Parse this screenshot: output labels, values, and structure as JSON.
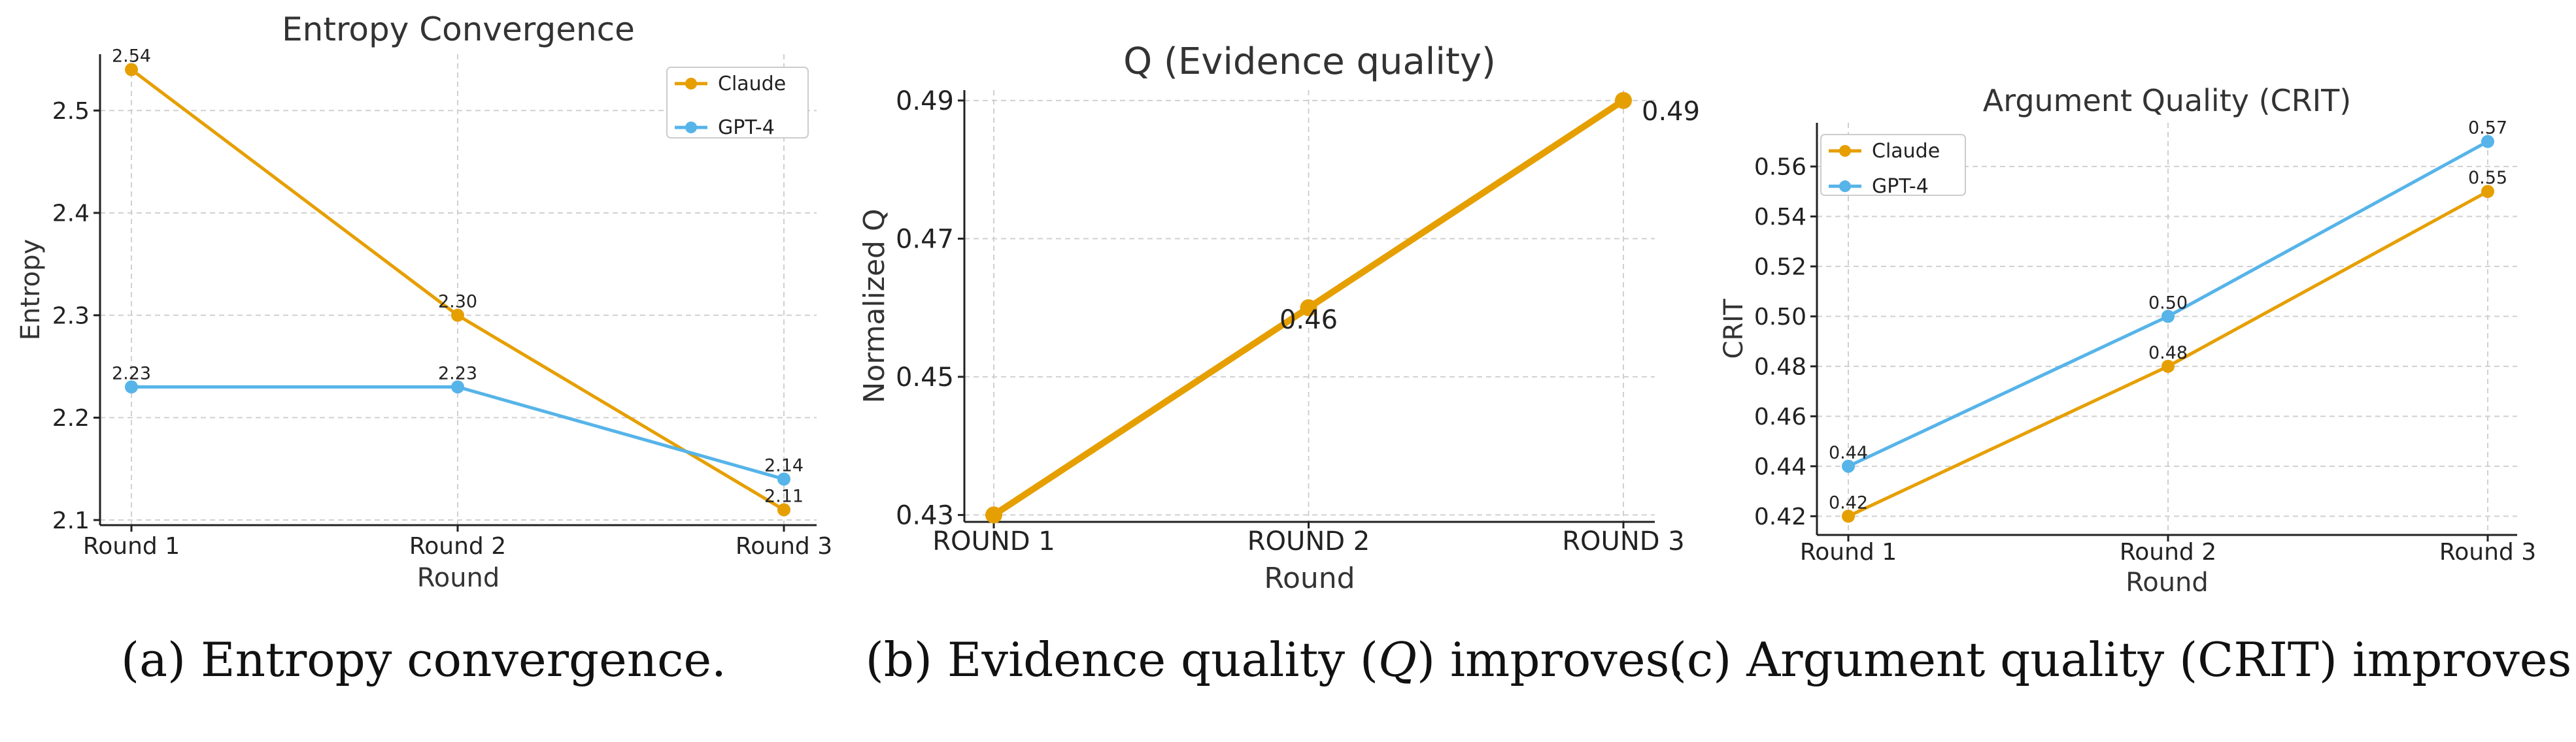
{
  "chart_data": [
    {
      "type": "line",
      "title": "Entropy Convergence",
      "xlabel": "Round",
      "ylabel": "Entropy",
      "categories": [
        "Round 1",
        "Round 2",
        "Round 3"
      ],
      "yticks": [
        "2.1",
        "2.2",
        "2.3",
        "2.4",
        "2.5"
      ],
      "ylim": [
        2.095,
        2.555
      ],
      "grid": true,
      "legend": "top-right",
      "series": [
        {
          "name": "Claude",
          "color": "#E69F00",
          "values": [
            2.54,
            2.3,
            2.11
          ],
          "labels": [
            "2.54",
            "2.30",
            "2.11"
          ]
        },
        {
          "name": "GPT-4",
          "color": "#56B4E9",
          "values": [
            2.23,
            2.23,
            2.14
          ],
          "labels": [
            "2.23",
            "2.23",
            "2.14"
          ]
        }
      ],
      "caption": "(a) Entropy convergence."
    },
    {
      "type": "line",
      "title": "Q (Evidence quality)",
      "xlabel": "Round",
      "ylabel": "Normalized Q",
      "categories": [
        "ROUND 1",
        "ROUND 2",
        "ROUND 3"
      ],
      "yticks": [
        "0.43",
        "0.45",
        "0.47",
        "0.49"
      ],
      "ylim": [
        0.429,
        0.4915
      ],
      "grid": true,
      "legend": "none",
      "series": [
        {
          "name": "Q",
          "color": "#E69F00",
          "values": [
            0.43,
            0.46,
            0.49
          ],
          "labels": [
            "",
            "0.46",
            "0.49"
          ]
        }
      ],
      "caption_parts": [
        "(b) Evidence quality (",
        "Q",
        ") improves."
      ]
    },
    {
      "type": "line",
      "title": "Argument Quality (CRIT)",
      "xlabel": "Round",
      "ylabel": "CRIT",
      "categories": [
        "Round 1",
        "Round 2",
        "Round 3"
      ],
      "yticks": [
        "0.42",
        "0.44",
        "0.46",
        "0.48",
        "0.50",
        "0.52",
        "0.54",
        "0.56"
      ],
      "ylim": [
        0.4125,
        0.5775
      ],
      "grid": true,
      "legend": "top-left",
      "series": [
        {
          "name": "Claude",
          "color": "#E69F00",
          "values": [
            0.42,
            0.48,
            0.55
          ],
          "labels": [
            "0.42",
            "0.48",
            "0.55"
          ]
        },
        {
          "name": "GPT-4",
          "color": "#56B4E9",
          "values": [
            0.44,
            0.5,
            0.57
          ],
          "labels": [
            "0.44",
            "0.50",
            "0.57"
          ]
        }
      ],
      "caption": "(c) Argument quality (CRIT) improves."
    }
  ]
}
